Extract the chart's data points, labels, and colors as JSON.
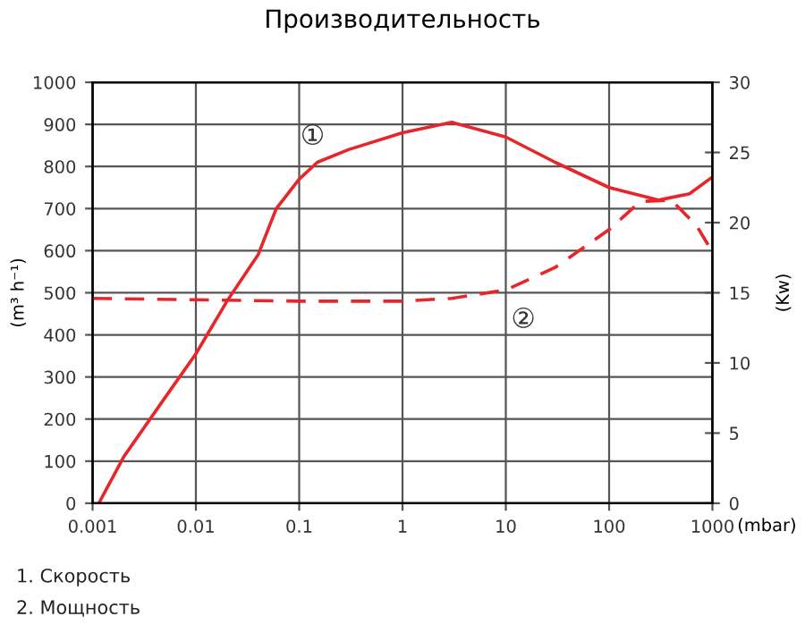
{
  "chart_data": {
    "type": "line",
    "title": "Производительность",
    "xlabel": "(mbar)",
    "ylabel": "(m³ h⁻¹)",
    "y2label": "(Kw)",
    "log": "x",
    "grid": true,
    "legend": false,
    "marker": "none",
    "xlim": [
      0.001,
      1000
    ],
    "xticks": [
      0.001,
      0.01,
      0.1,
      1,
      10,
      100,
      1000
    ],
    "ylim": [
      0,
      1000
    ],
    "yticks": [
      0,
      100,
      200,
      300,
      400,
      500,
      600,
      700,
      800,
      900,
      1000
    ],
    "y2lim": [
      0,
      30
    ],
    "y2ticks": [
      0,
      5,
      10,
      15,
      20,
      25,
      30
    ],
    "series": [
      {
        "color": "#e8262a",
        "line_style": "solid",
        "x": [
          0.00115,
          0.002,
          0.005,
          0.01,
          0.02,
          0.04,
          0.06,
          0.1,
          0.15,
          0.3,
          1,
          3,
          10,
          30,
          100,
          300,
          600,
          1000
        ],
        "values": [
          0,
          110,
          250,
          355,
          480,
          590,
          700,
          770,
          810,
          840,
          880,
          905,
          870,
          810,
          750,
          720,
          735,
          775
        ]
      },
      {
        "color": "#e8262a",
        "line_style": "dashed",
        "axis": "y2",
        "x": [
          0.001,
          0.01,
          0.1,
          1,
          3,
          10,
          30,
          100,
          200,
          400,
          700,
          1000
        ],
        "values": [
          14.6,
          14.5,
          14.4,
          14.4,
          14.6,
          15.2,
          16.8,
          19.5,
          21.5,
          21.6,
          19.8,
          17.9
        ]
      }
    ],
    "annotations": [
      "①",
      "②",
      "1. Скорость",
      "2. Мощность"
    ]
  }
}
